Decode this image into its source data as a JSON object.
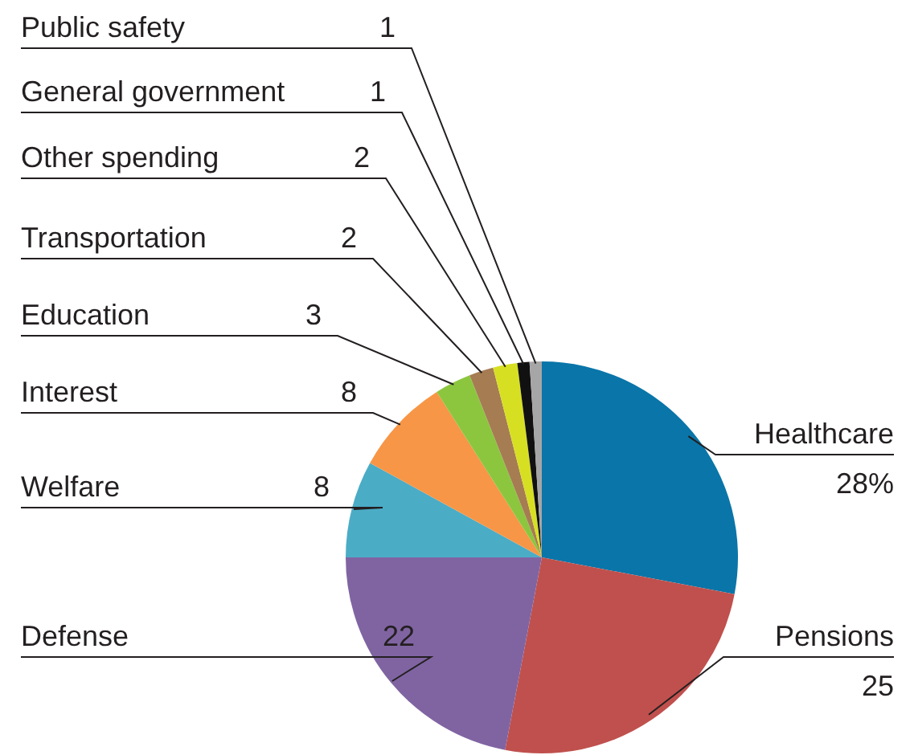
{
  "chart_data": {
    "type": "pie",
    "categories": [
      "Healthcare",
      "Pensions",
      "Defense",
      "Welfare",
      "Interest",
      "Education",
      "Transportation",
      "Other spending",
      "General government",
      "Public safety"
    ],
    "values": [
      28,
      25,
      22,
      8,
      8,
      3,
      2,
      2,
      1,
      1
    ],
    "colors": [
      "#0a75a8",
      "#c0504d",
      "#8064a2",
      "#4bacc6",
      "#f79646",
      "#8cc63f",
      "#a67c52",
      "#d7df23",
      "#111111",
      "#a6a6a6"
    ],
    "value_labels": [
      "28%",
      "25",
      "22",
      "8",
      "8",
      "3",
      "2",
      "2",
      "1",
      "1"
    ],
    "legend": false
  }
}
